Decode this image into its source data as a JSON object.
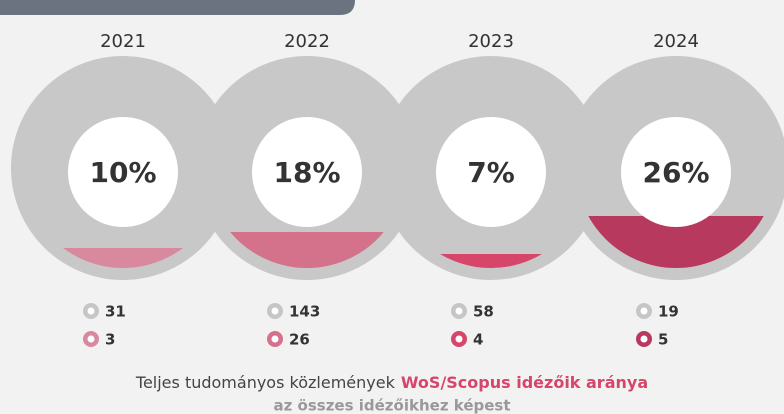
{
  "chart_data": {
    "type": "fill-circle",
    "categories": [
      "2021",
      "2022",
      "2023",
      "2024"
    ],
    "ratio": {
      "values": [
        10,
        18,
        7,
        26
      ],
      "value_labels": [
        "10%",
        "18%",
        "7%",
        "26%"
      ]
    },
    "colors": [
      "#d9899e",
      "#d4718b",
      "#d6456a",
      "#b73a5e"
    ],
    "series": [
      {
        "name": "Teljes tudományos közlemények",
        "color": "#c6c6c6",
        "values": [
          31,
          143,
          58,
          19
        ]
      },
      {
        "name": "WoS/Scopus idézőik aránya",
        "color": "#d6456a",
        "values": [
          3,
          26,
          4,
          5
        ]
      }
    ],
    "subtitle": "az összes idézőikhez képest"
  }
}
